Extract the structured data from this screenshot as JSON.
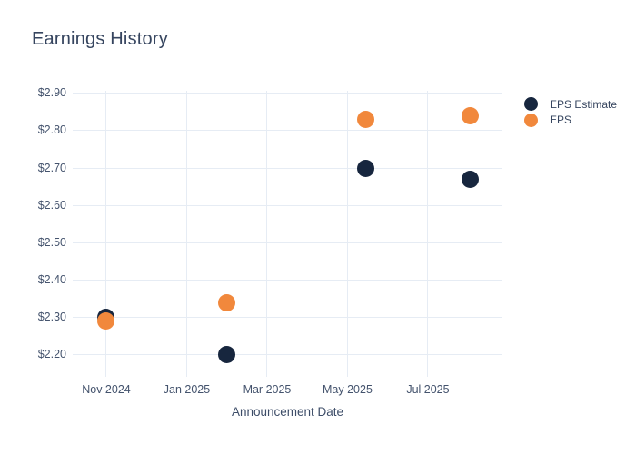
{
  "page": {
    "background": "#ffffff"
  },
  "chart_data": {
    "type": "scatter",
    "title": "Earnings History",
    "xlabel": "Announcement Date",
    "grid": true,
    "legend_position": "right",
    "x_unit": "months since Oct 2024",
    "x_domain": [
      0.164,
      10.854
    ],
    "y_domain": [
      2.141,
      2.919
    ],
    "x_ticks": [
      {
        "pos": 1,
        "label": "Nov 2024"
      },
      {
        "pos": 3,
        "label": "Jan 2025"
      },
      {
        "pos": 5,
        "label": "Mar 2025"
      },
      {
        "pos": 7,
        "label": "May 2025"
      },
      {
        "pos": 9,
        "label": "Jul 2025"
      }
    ],
    "y_ticks": [
      {
        "value": 2.9,
        "label": "$2.90"
      },
      {
        "value": 2.8,
        "label": "$2.80"
      },
      {
        "value": 2.7,
        "label": "$2.70"
      },
      {
        "value": 2.6,
        "label": "$2.60"
      },
      {
        "value": 2.5,
        "label": "$2.50"
      },
      {
        "value": 2.4,
        "label": "$2.40"
      },
      {
        "value": 2.3,
        "label": "$2.30"
      },
      {
        "value": 2.2,
        "label": "$2.20"
      }
    ],
    "series": [
      {
        "name": "EPS Estimate",
        "color": "#17263e",
        "points": [
          {
            "x": 1.0,
            "y": 2.3
          },
          {
            "x": 4.0,
            "y": 2.2
          },
          {
            "x": 7.45,
            "y": 2.7
          },
          {
            "x": 10.05,
            "y": 2.67
          }
        ]
      },
      {
        "name": "EPS",
        "color": "#f1883c",
        "points": [
          {
            "x": 1.0,
            "y": 2.29
          },
          {
            "x": 4.0,
            "y": 2.34
          },
          {
            "x": 7.45,
            "y": 2.83
          },
          {
            "x": 10.05,
            "y": 2.84
          }
        ]
      }
    ]
  }
}
